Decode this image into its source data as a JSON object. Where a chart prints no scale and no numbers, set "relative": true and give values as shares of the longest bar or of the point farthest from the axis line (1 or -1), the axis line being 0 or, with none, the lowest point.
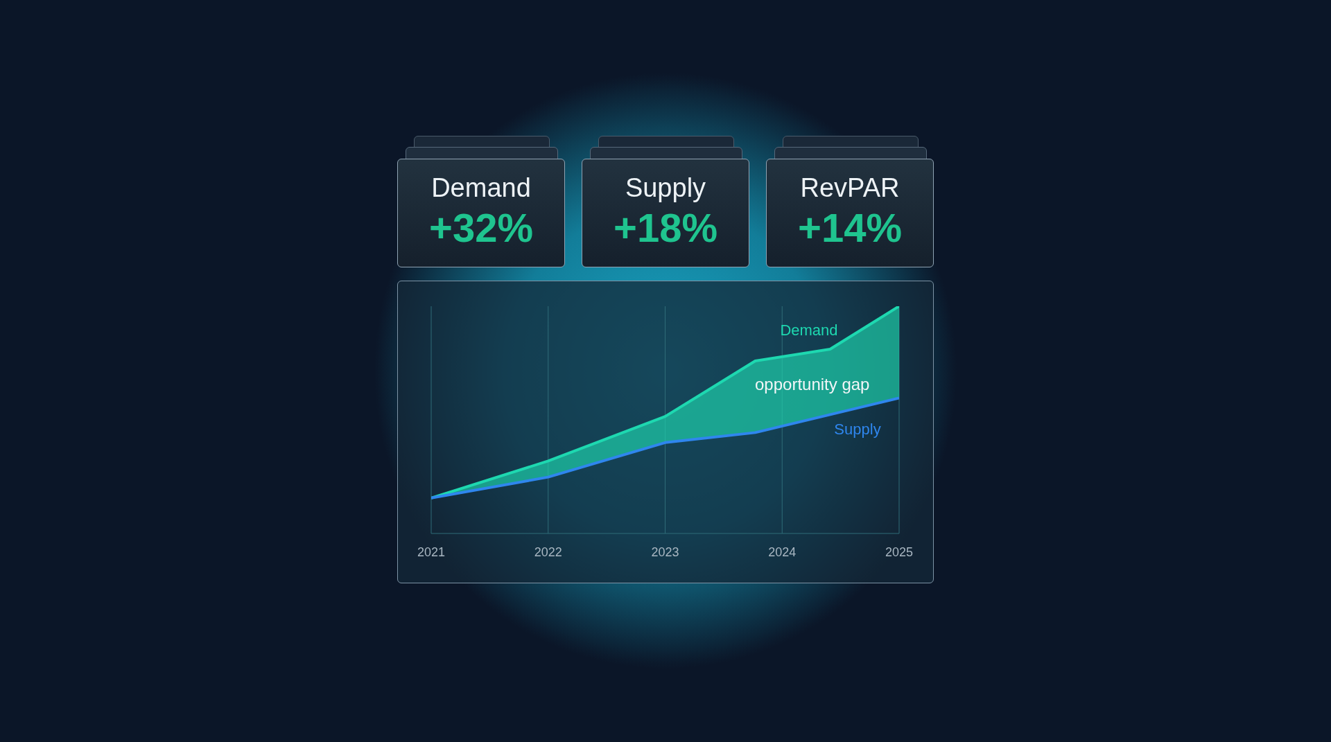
{
  "chart_data": [
    {
      "type": "other",
      "categories": [
        "Demand",
        "Supply",
        "RevPAR"
      ],
      "annotations": [
        "+32%",
        "+18%",
        "+14%"
      ]
    },
    {
      "type": "line",
      "relative": true,
      "xlim": [
        2021,
        2025
      ],
      "xticks": [
        2021,
        2022,
        2023,
        2024,
        2025
      ],
      "grid": "x",
      "annotations": [
        "opportunity gap"
      ],
      "series": [
        {
          "name": "Demand",
          "color": "#1ed8b0",
          "x": [
            2021,
            2022,
            2023,
            2023.77,
            2024.41,
            2025
          ],
          "values": [
            0.156,
            0.319,
            0.515,
            0.759,
            0.811,
            1
          ],
          "lower": [
            0.156,
            0.248,
            0.4,
            0.444,
            0.519,
            0.596
          ],
          "upper": [
            0.156,
            0.319,
            0.515,
            0.759,
            0.811,
            1
          ]
        },
        {
          "name": "Supply",
          "color": "#2f86ee",
          "x": [
            2021,
            2022,
            2023,
            2023.77,
            2025
          ],
          "values": [
            0.156,
            0.248,
            0.4,
            0.444,
            0.596
          ]
        }
      ]
    }
  ]
}
